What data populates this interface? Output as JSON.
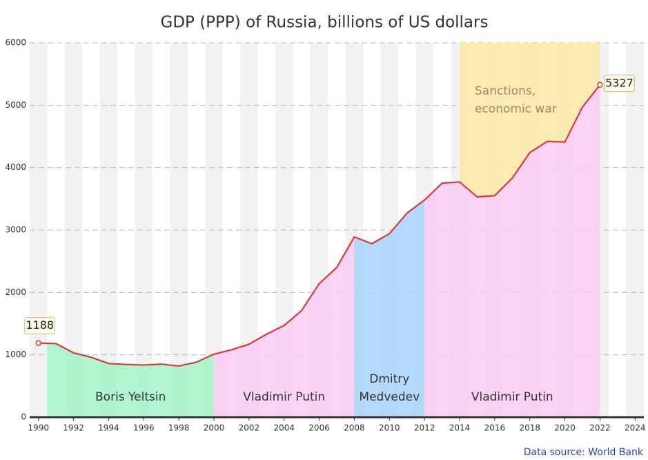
{
  "chart_data": {
    "type": "line",
    "title": "GDP (PPP) of Russia, billions of US dollars",
    "x": [
      1990,
      1991,
      1992,
      1993,
      1994,
      1995,
      1996,
      1997,
      1998,
      1999,
      2000,
      2001,
      2002,
      2003,
      2004,
      2005,
      2006,
      2007,
      2008,
      2009,
      2010,
      2011,
      2012,
      2013,
      2014,
      2015,
      2016,
      2017,
      2018,
      2019,
      2020,
      2021,
      2022
    ],
    "series": [
      {
        "color": "#d83a3a",
        "values": [
          1188,
          1180,
          1030,
          960,
          860,
          845,
          835,
          850,
          820,
          880,
          1010,
          1080,
          1170,
          1330,
          1470,
          1710,
          2140,
          2400,
          2890,
          2780,
          2940,
          3270,
          3480,
          3750,
          3770,
          3530,
          3550,
          3830,
          4240,
          4420,
          4410,
          4970,
          5327
        ]
      }
    ],
    "xlim": [
      1989.5,
      2024.5
    ],
    "xticks": [
      1990,
      1992,
      1994,
      1996,
      1998,
      2000,
      2002,
      2004,
      2006,
      2008,
      2010,
      2012,
      2014,
      2016,
      2018,
      2020,
      2022,
      2024
    ],
    "ylim": [
      0,
      6000
    ],
    "yticks": [
      0,
      1000,
      2000,
      3000,
      4000,
      5000,
      6000
    ],
    "grid": true,
    "periods": [
      {
        "lines": [
          "Boris Yeltsin"
        ],
        "start": 1990.5,
        "end": 2000,
        "color": "#a3f5c9",
        "fill": "below"
      },
      {
        "lines": [
          "Vladimir Putin"
        ],
        "start": 2000,
        "end": 2008,
        "color": "#f9cbf3",
        "fill": "below"
      },
      {
        "lines": [
          "Dmitry",
          "Medvedev"
        ],
        "start": 2008,
        "end": 2012,
        "color": "#a9d4fb",
        "fill": "below"
      },
      {
        "lines": [
          "Vladimir Putin"
        ],
        "start": 2012,
        "end": 2022,
        "color": "#f9cbf3",
        "fill": "below"
      },
      {
        "lines": [
          "Sanctions,",
          "economic war"
        ],
        "start": 2014,
        "end": 2022,
        "color": "#fbe7a6",
        "fill": "above"
      }
    ],
    "source": "Data source: World Bank"
  }
}
